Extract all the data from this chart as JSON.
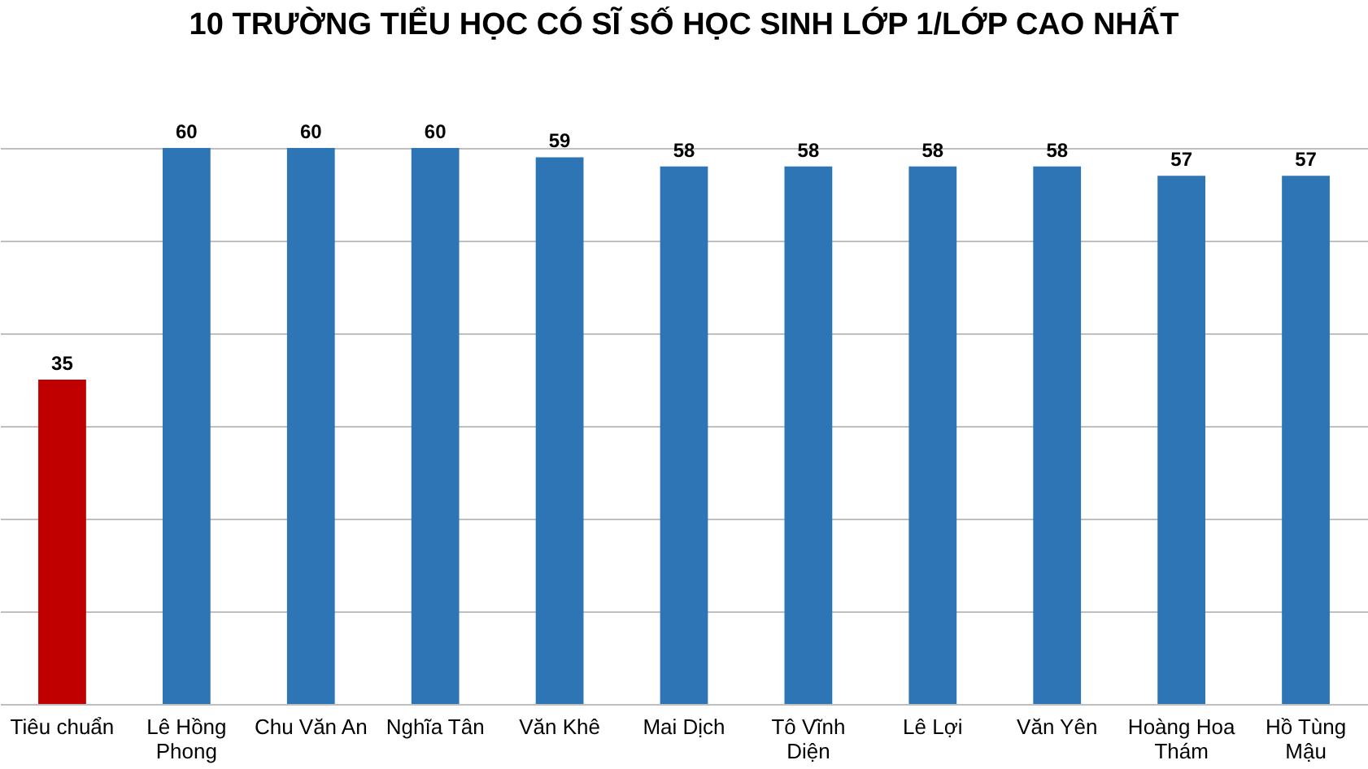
{
  "chart_data": {
    "type": "bar",
    "title": "10 TRƯỜNG TIỂU HỌC CÓ SĨ SỐ HỌC SINH LỚP 1/LỚP CAO NHẤT",
    "categories": [
      "Tiêu chuẩn",
      "Lê Hồng Phong",
      "Chu Văn An",
      "Nghĩa Tân",
      "Văn Khê",
      "Mai Dịch",
      "Tô Vĩnh Diện",
      "Lê Lợi",
      "Văn Yên",
      "Hoàng Hoa Thám",
      "Hồ Tùng Mậu"
    ],
    "values": [
      35,
      60,
      60,
      60,
      59,
      58,
      58,
      58,
      58,
      57,
      57
    ],
    "colors": [
      "#c00000",
      "#2e75b6",
      "#2e75b6",
      "#2e75b6",
      "#2e75b6",
      "#2e75b6",
      "#2e75b6",
      "#2e75b6",
      "#2e75b6",
      "#2e75b6",
      "#2e75b6"
    ],
    "ylim": [
      0,
      60
    ],
    "yticks": [
      {
        "value": 0,
        "label": null
      },
      {
        "value": 10,
        "label": null
      },
      {
        "value": 20,
        "label": null
      },
      {
        "value": 30,
        "label": null
      },
      {
        "value": 40,
        "label": null
      },
      {
        "value": 50,
        "label": null
      },
      {
        "value": 60,
        "label": null
      }
    ],
    "grid": "y",
    "tick_labels": "x",
    "data_labels": true
  }
}
